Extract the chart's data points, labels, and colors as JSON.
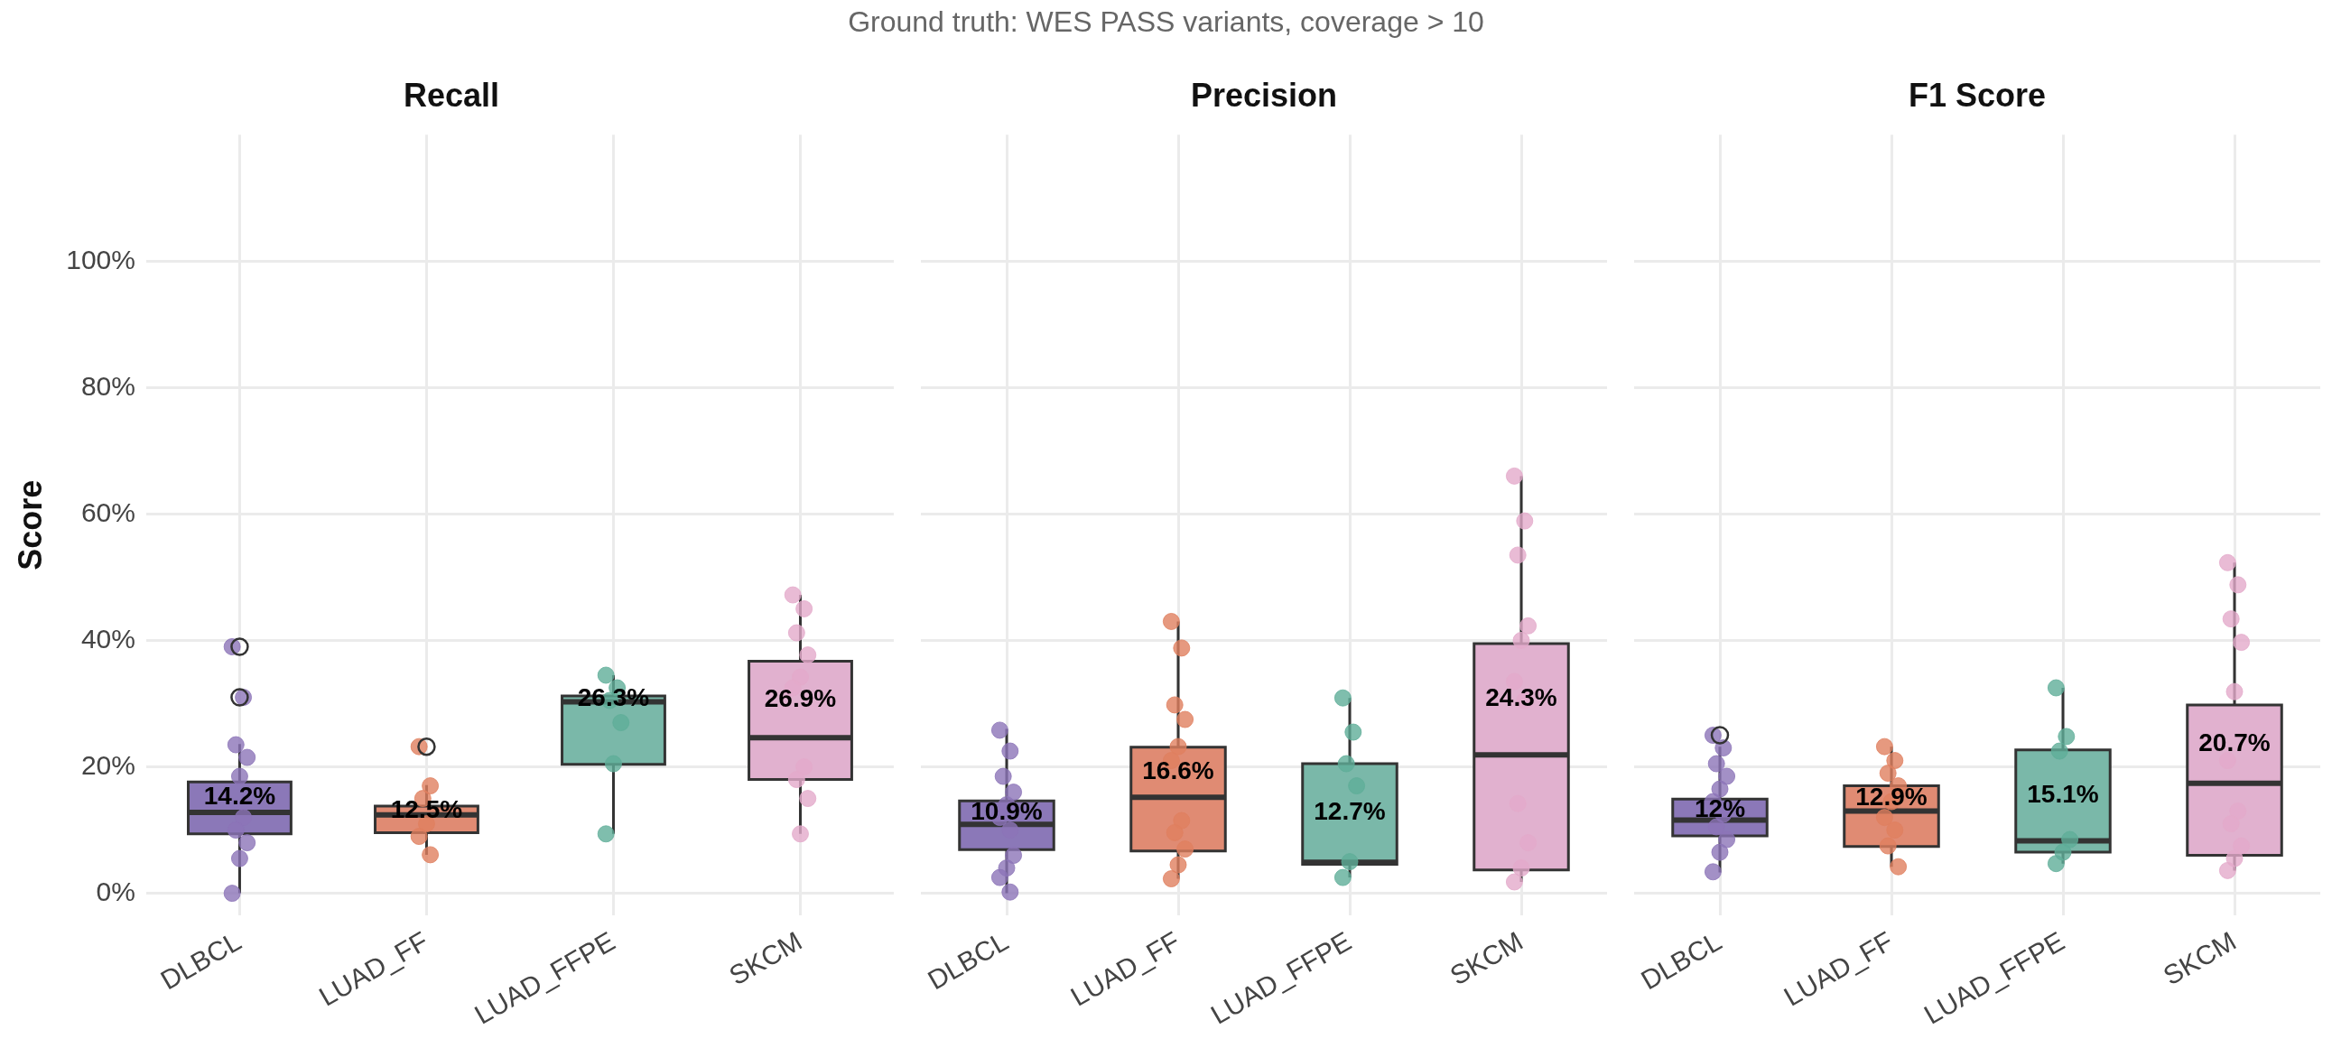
{
  "chart_data": [
    {
      "type": "box",
      "title": "Recall",
      "ylabel": "Score",
      "annotations": [
        "Ground truth: WES PASS variants, coverage > 10",
        "14.2%",
        "12.5%",
        "26.3%",
        "26.9%"
      ],
      "categories": [
        "DLBCL",
        "LUAD_FF",
        "LUAD_FFPE",
        "SKCM"
      ],
      "colors": [
        "#8b78b8",
        "#e08b73",
        "#7ab8a9",
        "#e1b1cf"
      ],
      "boxes": [
        {
          "low": 0,
          "q1": 9.4,
          "median": 12.8,
          "q3": 17.6,
          "high": 23.6,
          "outliers": [
            39,
            31
          ]
        },
        {
          "low": 6.1,
          "q1": 9.6,
          "median": 12.4,
          "q3": 13.8,
          "high": 17.1,
          "outliers": [
            23.2
          ]
        },
        {
          "low": 9.4,
          "q1": 20.4,
          "median": 30.3,
          "q3": 31.2,
          "high": 34.5
        },
        {
          "low": 9.4,
          "q1": 18,
          "median": 24.6,
          "q3": 36.7,
          "high": 47.2
        }
      ],
      "series": [
        {
          "type": "scatter",
          "color": "#8c74b8",
          "x": [
            "DLBCL",
            "DLBCL",
            "DLBCL",
            "DLBCL",
            "DLBCL",
            "DLBCL",
            "DLBCL",
            "DLBCL",
            "DLBCL",
            "DLBCL",
            "DLBCL"
          ],
          "values": [
            39,
            31,
            23.5,
            21.5,
            18.5,
            null,
            12,
            10,
            8,
            5.5,
            0
          ]
        },
        {
          "type": "scatter",
          "color": "#e0805f",
          "x": [
            "LUAD_FF",
            "LUAD_FF",
            "LUAD_FF",
            "LUAD_FF",
            "LUAD_FF",
            "LUAD_FF",
            "LUAD_FF"
          ],
          "values": [
            23.2,
            17,
            15,
            null,
            11,
            9,
            6.1
          ]
        },
        {
          "type": "scatter",
          "color": "#5fae98",
          "x": [
            "LUAD_FFPE",
            "LUAD_FFPE",
            "LUAD_FFPE",
            "LUAD_FFPE",
            "LUAD_FFPE",
            "LUAD_FFPE"
          ],
          "values": [
            34.5,
            32.5,
            30.5,
            27,
            20.5,
            9.4
          ]
        },
        {
          "type": "scatter",
          "color": "#e3aacb",
          "x": [
            "SKCM",
            "SKCM",
            "SKCM",
            "SKCM",
            "SKCM",
            "SKCM",
            "SKCM",
            "SKCM",
            "SKCM",
            "SKCM"
          ],
          "values": [
            47.2,
            45,
            41.2,
            37.7,
            34.2,
            32.5,
            20,
            18,
            15,
            9.4
          ]
        }
      ],
      "ylim": [
        -3.5,
        120
      ],
      "yticks": [
        {
          "value": 0,
          "label": "0%"
        },
        {
          "value": 20,
          "label": "20%"
        },
        {
          "value": 40,
          "label": "40%"
        },
        {
          "value": 60,
          "label": "60%"
        },
        {
          "value": 80,
          "label": "80%"
        },
        {
          "value": 100,
          "label": "100%"
        }
      ],
      "grid": true,
      "legend": false,
      "marker": "circle"
    },
    {
      "type": "box",
      "title": "Precision",
      "annotations": [
        "10.9%",
        "16.6%",
        "12.7%",
        "24.3%"
      ],
      "categories": [
        "DLBCL",
        "LUAD_FF",
        "LUAD_FFPE",
        "SKCM"
      ],
      "colors": [
        "#8b78b8",
        "#e08b73",
        "#7ab8a9",
        "#e1b1cf"
      ],
      "boxes": [
        {
          "low": 0,
          "q1": 6.9,
          "median": 10.9,
          "q3": 14.6,
          "high": 26
        },
        {
          "low": 2.3,
          "q1": 6.7,
          "median": 15.2,
          "q3": 23.1,
          "high": 43
        },
        {
          "low": 2.5,
          "q1": 4.6,
          "median": 4.9,
          "q3": 20.5,
          "high": 30.9
        },
        {
          "low": 1.8,
          "q1": 3.7,
          "median": 21.9,
          "q3": 39.5,
          "high": 66
        }
      ],
      "series": [
        {
          "type": "scatter",
          "color": "#8c74b8",
          "x": [
            "DLBCL",
            "DLBCL",
            "DLBCL",
            "DLBCL",
            "DLBCL",
            "DLBCL",
            "DLBCL",
            "DLBCL",
            "DLBCL",
            "DLBCL",
            "DLBCL",
            "DLBCL"
          ],
          "values": [
            25.8,
            22.5,
            18.5,
            16,
            14,
            12,
            10,
            null,
            6,
            4,
            2.5,
            0.2
          ]
        },
        {
          "type": "scatter",
          "color": "#e0805f",
          "x": [
            "LUAD_FF",
            "LUAD_FF",
            "LUAD_FF",
            "LUAD_FF",
            "LUAD_FF",
            "LUAD_FF",
            "LUAD_FF",
            "LUAD_FF",
            "LUAD_FF",
            "LUAD_FF",
            "LUAD_FF"
          ],
          "values": [
            43,
            38.8,
            29.8,
            27.5,
            23.2,
            21,
            11.5,
            9.6,
            7,
            4.5,
            2.3
          ]
        },
        {
          "type": "scatter",
          "color": "#5fae98",
          "x": [
            "LUAD_FFPE",
            "LUAD_FFPE",
            "LUAD_FFPE",
            "LUAD_FFPE",
            "LUAD_FFPE",
            "LUAD_FFPE"
          ],
          "values": [
            30.9,
            25.5,
            20.5,
            17,
            5,
            2.5
          ]
        },
        {
          "type": "scatter",
          "color": "#e3aacb",
          "x": [
            "SKCM",
            "SKCM",
            "SKCM",
            "SKCM",
            "SKCM",
            "SKCM",
            "SKCM",
            "SKCM",
            "SKCM",
            "SKCM",
            "SKCM"
          ],
          "values": [
            66,
            58.9,
            53.5,
            42.3,
            40,
            33.5,
            30.5,
            14.2,
            8,
            4,
            1.8
          ]
        }
      ],
      "ylim": [
        -3.5,
        120
      ],
      "yticks": [
        0,
        20,
        40,
        60,
        80,
        100
      ],
      "tick_labels": "x",
      "grid": true,
      "legend": false,
      "marker": "circle"
    },
    {
      "type": "box",
      "title": "F1 Score",
      "annotations": [
        "12%",
        "12.9%",
        "15.1%",
        "20.7%"
      ],
      "categories": [
        "DLBCL",
        "LUAD_FF",
        "LUAD_FFPE",
        "SKCM"
      ],
      "colors": [
        "#8b78b8",
        "#e08b73",
        "#7ab8a9",
        "#e1b1cf"
      ],
      "boxes": [
        {
          "low": 3.3,
          "q1": 9.1,
          "median": 11.6,
          "q3": 14.9,
          "high": 23.2,
          "outliers": [
            25
          ]
        },
        {
          "low": 4.2,
          "q1": 7.4,
          "median": 13,
          "q3": 17,
          "high": 23.2
        },
        {
          "low": 4.7,
          "q1": 6.5,
          "median": 8.3,
          "q3": 22.7,
          "high": 32.5
        },
        {
          "low": 3.6,
          "q1": 6,
          "median": 17.4,
          "q3": 29.8,
          "high": 52.3
        }
      ],
      "series": [
        {
          "type": "scatter",
          "color": "#8c74b8",
          "x": [
            "DLBCL",
            "DLBCL",
            "DLBCL",
            "DLBCL",
            "DLBCL",
            "DLBCL",
            "DLBCL",
            "DLBCL",
            "DLBCL",
            "DLBCL",
            "DLBCL"
          ],
          "values": [
            25,
            23,
            20.5,
            18.5,
            16.5,
            14.5,
            12.5,
            10.5,
            8.5,
            6.5,
            3.4
          ]
        },
        {
          "type": "scatter",
          "color": "#e0805f",
          "x": [
            "LUAD_FF",
            "LUAD_FF",
            "LUAD_FF",
            "LUAD_FF",
            "LUAD_FF",
            "LUAD_FF",
            "LUAD_FF",
            "LUAD_FF",
            "LUAD_FF"
          ],
          "values": [
            23.2,
            21,
            19,
            17,
            14.5,
            12,
            10,
            7.5,
            4.2
          ]
        },
        {
          "type": "scatter",
          "color": "#5fae98",
          "x": [
            "LUAD_FFPE",
            "LUAD_FFPE",
            "LUAD_FFPE",
            "LUAD_FFPE",
            "LUAD_FFPE",
            "LUAD_FFPE"
          ],
          "values": [
            32.5,
            24.8,
            22.5,
            8.5,
            6.5,
            4.7
          ]
        },
        {
          "type": "scatter",
          "color": "#e3aacb",
          "x": [
            "SKCM",
            "SKCM",
            "SKCM",
            "SKCM",
            "SKCM",
            "SKCM",
            "SKCM",
            "SKCM",
            "SKCM",
            "SKCM",
            "SKCM"
          ],
          "values": [
            52.3,
            48.8,
            43.4,
            39.7,
            31.9,
            21,
            13,
            11,
            7.5,
            5.5,
            3.6
          ]
        }
      ],
      "ylim": [
        -3.5,
        120
      ],
      "yticks": [
        0,
        20,
        40,
        60,
        80,
        100
      ],
      "tick_labels": "x",
      "grid": true,
      "legend": false,
      "marker": "circle"
    }
  ]
}
